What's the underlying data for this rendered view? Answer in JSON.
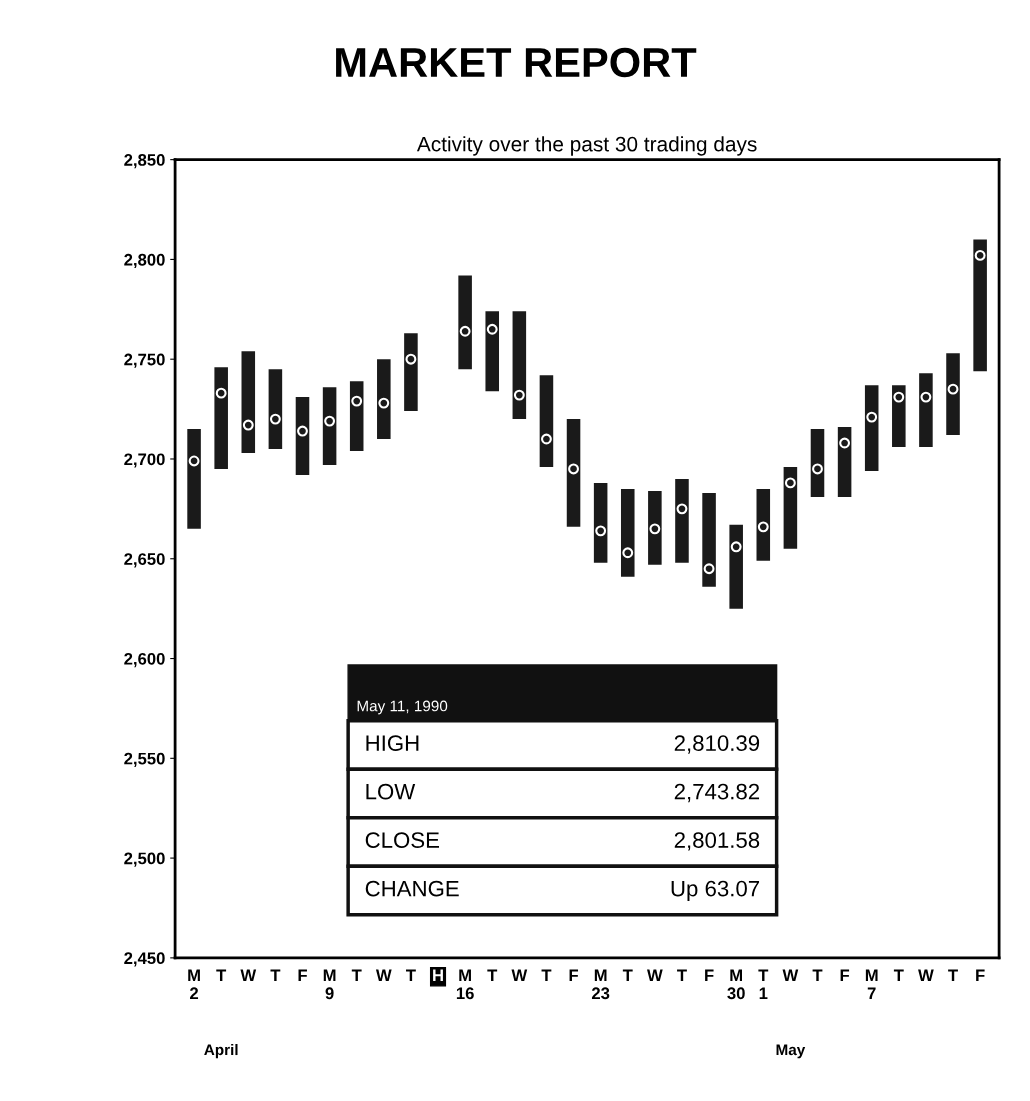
{
  "chart_data": {
    "type": "bar",
    "title": "MARKET REPORT",
    "subtitle": "Activity over the past 30 trading days",
    "categories": [
      "M\n2",
      "T",
      "W",
      "T",
      "F",
      "M\n9",
      "T",
      "W",
      "T",
      "H",
      "M\n16",
      "T",
      "W",
      "T",
      "F",
      "M\n23",
      "T",
      "W",
      "T",
      "F",
      "M\n30",
      "T\n1",
      "W",
      "T",
      "F",
      "M\n7",
      "T",
      "W",
      "T",
      "F"
    ],
    "series": [
      {
        "color": "#1a1a1a",
        "base": [
          2665,
          2695,
          2703,
          2705,
          2692,
          2697,
          2704,
          2710,
          2724,
          null,
          2745,
          2734,
          2720,
          2696,
          2666,
          2648,
          2641,
          2647,
          2648,
          2636,
          2625,
          2649,
          2655,
          2681,
          2681,
          2694,
          2706,
          2706,
          2712,
          2744
        ],
        "values": [
          50,
          51,
          51,
          40,
          39,
          39,
          35,
          40,
          39,
          null,
          47,
          40,
          54,
          46,
          54,
          40,
          44,
          37,
          42,
          47,
          42,
          36,
          41,
          34,
          35,
          43,
          31,
          37,
          41,
          66
        ]
      },
      {
        "type": "scatter",
        "color": "#1a1a1a",
        "values": [
          2699,
          2733,
          2717,
          2720,
          2714,
          2719,
          2729,
          2728,
          2750,
          null,
          2764,
          2765,
          2732,
          2710,
          2695,
          2664,
          2653,
          2665,
          2675,
          2645,
          2656,
          2666,
          2688,
          2695,
          2708,
          2721,
          2731,
          2731,
          2735,
          2802
        ]
      }
    ],
    "marker": "circle",
    "ylim": [
      2450,
      2850
    ],
    "yticks": [
      {
        "value": 2450,
        "label": "2,450"
      },
      {
        "value": 2500,
        "label": "2,500"
      },
      {
        "value": 2550,
        "label": "2,550"
      },
      {
        "value": 2600,
        "label": "2,600"
      },
      {
        "value": 2650,
        "label": "2,650"
      },
      {
        "value": 2700,
        "label": "2,700"
      },
      {
        "value": 2750,
        "label": "2,750"
      },
      {
        "value": 2800,
        "label": "2,800"
      },
      {
        "value": 2850,
        "label": "2,850"
      }
    ],
    "grid": false,
    "annotations": [
      "May 11, 1990",
      "HIGH",
      "2,810.39",
      "LOW",
      "2,743.82",
      "CLOSE",
      "2,801.58",
      "CHANGE",
      "Up 63.07",
      "April",
      "May"
    ]
  }
}
